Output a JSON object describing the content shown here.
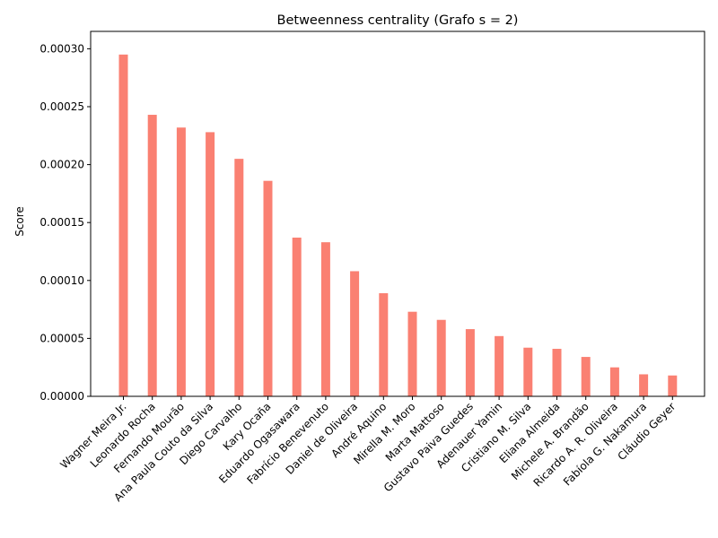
{
  "chart_data": {
    "type": "bar",
    "title": "Betweenness centrality (Grafo s = 2)",
    "xlabel": "",
    "ylabel": "Score",
    "ylim": [
      0,
      0.000315
    ],
    "yticks": [
      "0.00000",
      "0.00005",
      "0.00010",
      "0.00015",
      "0.00020",
      "0.00025",
      "0.00030"
    ],
    "bar_color": "#fa8072",
    "grid": false,
    "categories": [
      "Wagner Meira Jr.",
      "Leonardo Rocha",
      "Fernando Mourão",
      "Ana Paula Couto da Silva",
      "Diego Carvalho",
      "Kary Ocaña",
      "Eduardo Ogasawara",
      "Fabrício Benevenuto",
      "Daniel de Oliveira",
      "André Aquino",
      "Mirella M. Moro",
      "Marta Mattoso",
      "Gustavo Paiva Guedes",
      "Adenauer Yamin",
      "Cristiano M. Silva",
      "Eliana Almeida",
      "Michele A. Brandão",
      "Ricardo A. R. Oliveira",
      "Fabíola G. Nakamura",
      "Cláudio Geyer"
    ],
    "values": [
      0.000295,
      0.000243,
      0.000232,
      0.000228,
      0.000205,
      0.000186,
      0.000137,
      0.000133,
      0.000108,
      8.9e-05,
      7.3e-05,
      6.6e-05,
      5.8e-05,
      5.2e-05,
      4.2e-05,
      4.1e-05,
      3.4e-05,
      2.5e-05,
      1.9e-05,
      1.8e-05
    ]
  }
}
